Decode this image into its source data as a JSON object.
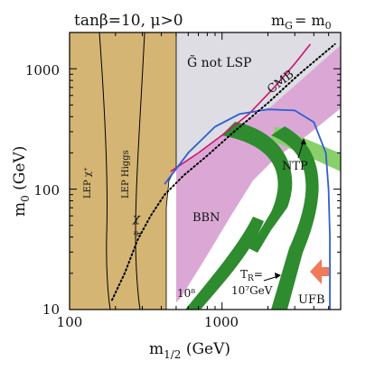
{
  "chart_data": {
    "type": "line",
    "title": "tanβ=10, μ>0",
    "title_right": "m̃ = m₀",
    "title_right_parts": {
      "lhs": "m",
      "lhs_sub": "G",
      "eq": "= m",
      "rhs_sub": "0"
    },
    "xlabel": {
      "base": "m",
      "sub": "1/2",
      "unit": " (GeV)"
    },
    "ylabel": {
      "base": "m",
      "sub": "0",
      "unit": " (GeV)"
    },
    "x_scale": "log",
    "y_scale": "log",
    "xlim": [
      100,
      6000
    ],
    "ylim": [
      10,
      2000
    ],
    "x_ticks": [
      {
        "v": 100,
        "label": "100"
      },
      {
        "v": 1000,
        "label": "1000"
      }
    ],
    "y_ticks": [
      {
        "v": 10,
        "label": "10"
      },
      {
        "v": 100,
        "label": "100"
      },
      {
        "v": 1000,
        "label": "1000"
      }
    ],
    "region_labels": {
      "not_lsp": "G̃ not LSP",
      "cmb": "CMB",
      "ntp": "NTP",
      "bbn": "BBN",
      "lep_chargino": "LEP χ⁺",
      "lep_higgs": "LEP Higgs",
      "chi_tau_chi": "χ",
      "chi_tau_tau": "τ̃",
      "tr_line1": "T",
      "tr_line1_sub": "R",
      "tr_line1_end": "=",
      "tr_line2": "10⁷GeV",
      "ten8": "10⁸",
      "ufb": "UFB"
    },
    "colors": {
      "lep": "#d4b574",
      "not_lsp": "#dddde3",
      "cmb_band": "#d9a3d4",
      "cmb_line": "#d0126e",
      "green_band": "#2e8b2e",
      "light_green": "#8ad06a",
      "blue_line": "#2f5fd1",
      "ufb_arrow": "#f07a5a",
      "dotted": "#000000"
    },
    "series": [
      {
        "key": "cmb_line",
        "points": [
          [
            460,
            140
          ],
          [
            700,
            200
          ],
          [
            1000,
            280
          ],
          [
            1500,
            420
          ],
          [
            2200,
            700
          ],
          [
            3000,
            1100
          ],
          [
            3800,
            1600
          ]
        ]
      },
      {
        "key": "blue_line",
        "points": [
          [
            420,
            110
          ],
          [
            600,
            200
          ],
          [
            900,
            330
          ],
          [
            1300,
            420
          ],
          [
            2000,
            460
          ],
          [
            3000,
            450
          ],
          [
            4000,
            360
          ],
          [
            4800,
            200
          ],
          [
            5000,
            100
          ],
          [
            5100,
            40
          ],
          [
            5100,
            10
          ]
        ]
      },
      {
        "key": "chi_tau_boundary",
        "points": [
          [
            190,
            12
          ],
          [
            230,
            20
          ],
          [
            280,
            38
          ],
          [
            340,
            60
          ],
          [
            420,
            90
          ],
          [
            560,
            130
          ],
          [
            800,
            190
          ],
          [
            1200,
            300
          ],
          [
            2000,
            520
          ],
          [
            3200,
            900
          ],
          [
            5500,
            1600
          ]
        ]
      }
    ]
  }
}
